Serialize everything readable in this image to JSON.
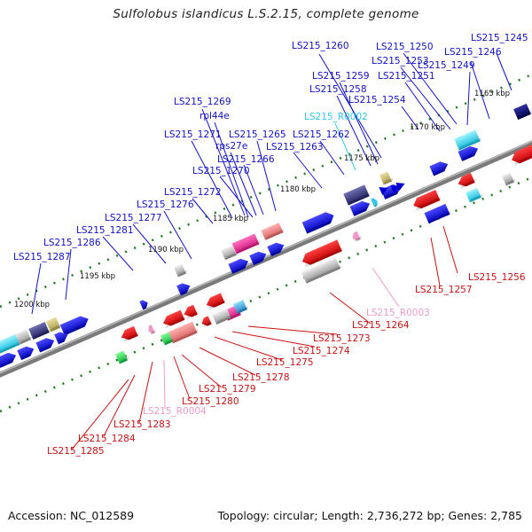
{
  "title": "Sulfolobus islandicus L.S.2.15, complete genome",
  "footer": {
    "accession": "Accession: NC_012589",
    "summary": "Topology: circular; Length: 2,736,272 bp; Genes: 2,785"
  },
  "colors": {
    "forward": "#1111cc",
    "reverse": "#cc1111",
    "rna_forward": "#33c8e8",
    "rna_reverse": "#f09ac8",
    "backbone": "#808080",
    "tick": "#1a7a1a"
  },
  "scale_labels": [
    "1165 kbp",
    "1170 kbp",
    "1175 kbp",
    "1180 kbp",
    "1185 kbp",
    "1190 kbp",
    "1195 kbp",
    "1200 kbp"
  ],
  "forward_labels": [
    "LS215_1245",
    "LS215_1246",
    "LS215_1250",
    "LS215_1249",
    "LS215_1253",
    "LS215_1251",
    "LS215_1260",
    "LS215_1259",
    "LS215_1258",
    "LS215_1254",
    "LS215_R0002",
    "LS215_1269",
    "rpl44e",
    "LS215_1271",
    "rps27e",
    "LS215_1265",
    "LS215_1262",
    "LS215_1266",
    "LS215_1263",
    "LS215_1270",
    "LS215_1272",
    "LS215_1276",
    "LS215_1277",
    "LS215_1281",
    "LS215_1286",
    "LS215_1287"
  ],
  "reverse_labels": [
    "LS215_1256",
    "LS215_1257",
    "LS215_R0003",
    "LS215_1264",
    "LS215_1273",
    "LS215_1274",
    "LS215_1275",
    "LS215_1278",
    "LS215_1279",
    "LS215_1280",
    "LS215_R0004",
    "LS215_1283",
    "LS215_1284",
    "LS215_1285"
  ]
}
